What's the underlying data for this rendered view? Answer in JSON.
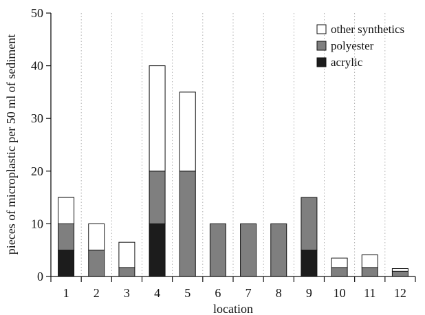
{
  "chart_data": {
    "type": "bar",
    "stacked": true,
    "categories": [
      "1",
      "2",
      "3",
      "4",
      "5",
      "6",
      "7",
      "8",
      "9",
      "10",
      "11",
      "12"
    ],
    "series": [
      {
        "name": "acrylic",
        "color": "#1c1c1c",
        "values": [
          5,
          0,
          0,
          10,
          0,
          0,
          0,
          0,
          5,
          0,
          0,
          0
        ]
      },
      {
        "name": "polyester",
        "color": "#7f7f7f",
        "values": [
          5,
          5,
          1.7,
          10,
          20,
          10,
          10,
          10,
          10,
          1.7,
          1.7,
          1
        ]
      },
      {
        "name": "other synthetics",
        "color": "#ffffff",
        "values": [
          5,
          5,
          4.8,
          20,
          15,
          0,
          0,
          0,
          0,
          1.8,
          2.4,
          0.5
        ]
      }
    ],
    "legend_order": [
      "other synthetics",
      "polyester",
      "acrylic"
    ],
    "legend_position": "top-right",
    "xlabel": "location",
    "ylabel": "pieces of microplastic per 50 ml of sediment",
    "ylim": [
      0,
      50
    ],
    "yticks": [
      0,
      10,
      20,
      30,
      40,
      50
    ],
    "grid": "vertical dotted"
  }
}
